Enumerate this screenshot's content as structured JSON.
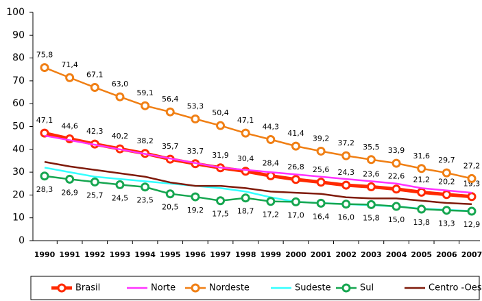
{
  "chart_data": {
    "type": "line",
    "categories": [
      "1990",
      "1991",
      "1992",
      "1993",
      "1994",
      "1995",
      "1996",
      "1997",
      "1998",
      "1999",
      "2000",
      "2001",
      "2002",
      "2003",
      "2004",
      "2005",
      "2006",
      "2007"
    ],
    "ylim": [
      0,
      100
    ],
    "yticks": [
      0,
      10,
      20,
      30,
      40,
      50,
      60,
      70,
      80,
      90,
      100
    ],
    "legend": "bottom",
    "series": [
      {
        "name": "Brasil",
        "color": "#ff2a00",
        "width": 5,
        "markers": true,
        "label_position": "above",
        "values": [
          47.1,
          44.6,
          42.3,
          40.2,
          38.2,
          35.7,
          33.7,
          31.9,
          30.4,
          28.4,
          26.8,
          25.6,
          24.3,
          23.6,
          22.6,
          21.2,
          20.2,
          19.3
        ],
        "value_labels": [
          "47,1",
          "44,6",
          "42,3",
          "40,2",
          "38,2",
          "35,7",
          "33,7",
          "31,9",
          "30,4",
          "28,4",
          "26,8",
          "25,6",
          "24,3",
          "23,6",
          "22,6",
          "21,2",
          "20,2",
          "19,3"
        ]
      },
      {
        "name": "Norte",
        "color": "#ff33ff",
        "width": 2.5,
        "markers": false,
        "values": [
          46,
          44,
          42,
          40,
          38,
          36,
          34,
          32,
          31,
          30,
          29,
          28,
          27,
          26,
          25,
          23,
          22,
          21
        ]
      },
      {
        "name": "Nordeste",
        "color": "#f07f14",
        "width": 2.5,
        "markers": true,
        "label_position": "above",
        "values": [
          75.8,
          71.4,
          67.1,
          63.0,
          59.1,
          56.4,
          53.3,
          50.4,
          47.1,
          44.3,
          41.4,
          39.2,
          37.2,
          35.5,
          33.9,
          31.6,
          29.7,
          27.2
        ],
        "value_labels": [
          "75,8",
          "71,4",
          "67,1",
          "63,0",
          "59,1",
          "56,4",
          "53,3",
          "50,4",
          "47,1",
          "44,3",
          "41,4",
          "39,2",
          "37,2",
          "35,5",
          "33,9",
          "31,6",
          "29,7",
          "27,2"
        ]
      },
      {
        "name": "Sudeste",
        "color": "#33ffff",
        "width": 2.5,
        "markers": false,
        "values": [
          32,
          30,
          28,
          27,
          26,
          25,
          24,
          23,
          21.5,
          19,
          17,
          16.5,
          16,
          15.5,
          15,
          14,
          13.5,
          13
        ]
      },
      {
        "name": "Sul",
        "color": "#16a650",
        "width": 2.5,
        "markers": true,
        "label_position": "below",
        "values": [
          28.3,
          26.9,
          25.7,
          24.5,
          23.5,
          20.5,
          19.2,
          17.5,
          18.7,
          17.2,
          17.0,
          16.4,
          16.0,
          15.8,
          15.0,
          13.8,
          13.3,
          12.9
        ],
        "value_labels": [
          "28,3",
          "26,9",
          "25,7",
          "24,5",
          "23,5",
          "20,5",
          "19,2",
          "17,5",
          "18,7",
          "17,2",
          "17,0",
          "16,4",
          "16,0",
          "15,8",
          "15,0",
          "13,8",
          "13,3",
          "12,9"
        ]
      },
      {
        "name": "Centro -Oeste",
        "color": "#7f1a0a",
        "width": 2.5,
        "markers": false,
        "values": [
          34.5,
          32.5,
          31,
          29.5,
          28,
          25.5,
          24,
          24,
          23,
          21.5,
          21,
          20.5,
          19,
          18.5,
          18.5,
          17.5,
          16.5,
          16
        ]
      }
    ]
  }
}
